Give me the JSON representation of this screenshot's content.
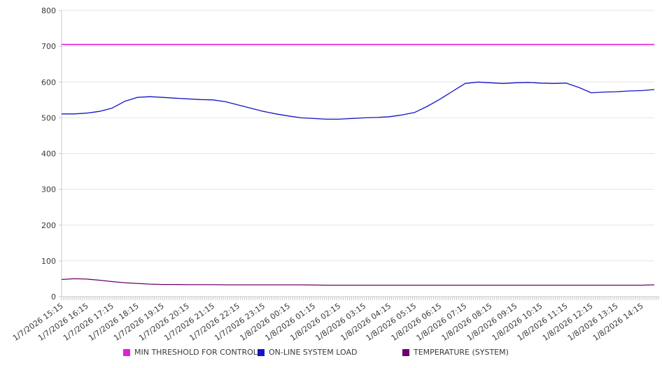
{
  "chart_data": {
    "type": "line",
    "title": "",
    "xlabel": "",
    "ylabel": "",
    "ylim": [
      0,
      800
    ],
    "y_ticks": [
      0,
      100,
      200,
      300,
      400,
      500,
      600,
      700,
      800
    ],
    "grid": "horizontal",
    "legend_position": "bottom",
    "x_minor_tick_minutes": 5,
    "x_labels": [
      "1/7/2026 15:15",
      "1/7/2026 16:15",
      "1/7/2026 17:15",
      "1/7/2026 18:15",
      "1/7/2026 19:15",
      "1/7/2026 20:15",
      "1/7/2026 21:15",
      "1/7/2026 22:15",
      "1/7/2026 23:15",
      "1/8/2026 00:15",
      "1/8/2026 01:15",
      "1/8/2026 02:15",
      "1/8/2026 03:15",
      "1/8/2026 04:15",
      "1/8/2026 05:15",
      "1/8/2026 06:15",
      "1/8/2026 07:15",
      "1/8/2026 08:15",
      "1/8/2026 09:15",
      "1/8/2026 10:15",
      "1/8/2026 11:15",
      "1/8/2026 12:15",
      "1/8/2026 13:15",
      "1/8/2026 14:15"
    ],
    "x": [
      "1/7/2026 15:15",
      "1/7/2026 15:45",
      "1/7/2026 16:15",
      "1/7/2026 16:45",
      "1/7/2026 17:15",
      "1/7/2026 17:45",
      "1/7/2026 18:15",
      "1/7/2026 18:45",
      "1/7/2026 19:15",
      "1/7/2026 19:45",
      "1/7/2026 20:15",
      "1/7/2026 20:45",
      "1/7/2026 21:15",
      "1/7/2026 21:45",
      "1/7/2026 22:15",
      "1/7/2026 22:45",
      "1/7/2026 23:15",
      "1/7/2026 23:45",
      "1/8/2026 00:15",
      "1/8/2026 00:45",
      "1/8/2026 01:15",
      "1/8/2026 01:45",
      "1/8/2026 02:15",
      "1/8/2026 02:45",
      "1/8/2026 03:15",
      "1/8/2026 03:45",
      "1/8/2026 04:15",
      "1/8/2026 04:45",
      "1/8/2026 05:15",
      "1/8/2026 05:45",
      "1/8/2026 06:15",
      "1/8/2026 06:45",
      "1/8/2026 07:15",
      "1/8/2026 07:45",
      "1/8/2026 08:15",
      "1/8/2026 08:45",
      "1/8/2026 09:15",
      "1/8/2026 09:45",
      "1/8/2026 10:15",
      "1/8/2026 10:45",
      "1/8/2026 11:15",
      "1/8/2026 11:45",
      "1/8/2026 12:15",
      "1/8/2026 12:45",
      "1/8/2026 13:15",
      "1/8/2026 13:45",
      "1/8/2026 14:15",
      "1/8/2026 14:45"
    ],
    "series": [
      {
        "name": "MIN THRESHOLD FOR CONTROL",
        "color": "#e020d8",
        "stroke_width": 1.6,
        "values": [
          705,
          705,
          705,
          705,
          705,
          705,
          705,
          705,
          705,
          705,
          705,
          705,
          705,
          705,
          705,
          705,
          705,
          705,
          705,
          705,
          705,
          705,
          705,
          705,
          705,
          705,
          705,
          705,
          705,
          705,
          705,
          705,
          705,
          705,
          705,
          705,
          705,
          705,
          705,
          705,
          705,
          705,
          705,
          705,
          705,
          705,
          705,
          705
        ]
      },
      {
        "name": "ON-LINE SYSTEM LOAD",
        "color": "#1414c8",
        "stroke_width": 1.3,
        "values": [
          511,
          511,
          513,
          518,
          527,
          546,
          557,
          559,
          557,
          555,
          553,
          551,
          550,
          545,
          536,
          527,
          518,
          511,
          505,
          500,
          498,
          496,
          496,
          498,
          500,
          501,
          503,
          508,
          515,
          532,
          552,
          574,
          596,
          600,
          598,
          596,
          598,
          599,
          597,
          596,
          597,
          585,
          570,
          572,
          573,
          575,
          576,
          579
        ]
      },
      {
        "name": "TEMPERATURE (SYSTEM)",
        "color": "#6e006e",
        "stroke_width": 1.3,
        "values": [
          48,
          50,
          49,
          46,
          42,
          39,
          37,
          35,
          34,
          34,
          33.5,
          33.5,
          33.5,
          33,
          33,
          33,
          33,
          33,
          33,
          33,
          32.5,
          32,
          32,
          32,
          32,
          32,
          32,
          32,
          32,
          32,
          32,
          32,
          32,
          32,
          32,
          32,
          32,
          32,
          32,
          32,
          32,
          32,
          32,
          32,
          32,
          32,
          32,
          33
        ]
      }
    ]
  },
  "legend": {
    "items": [
      {
        "label": "MIN THRESHOLD FOR CONTROL"
      },
      {
        "label": "ON-LINE SYSTEM LOAD"
      },
      {
        "label": "TEMPERATURE (SYSTEM)"
      }
    ]
  }
}
